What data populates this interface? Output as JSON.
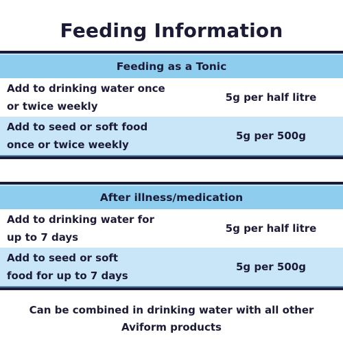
{
  "title": "Feeding Information",
  "sections": [
    {
      "header": "Feeding as a Tonic",
      "rows": [
        {
          "line1": "Add to drinking water once",
          "line2": "or twice weekly",
          "dose": "5g per half litre"
        },
        {
          "line1": "Add to seed or soft food",
          "line2": "once or twice weekly",
          "dose": "5g per 500g"
        }
      ]
    },
    {
      "header": "After illness/medication",
      "rows": [
        {
          "line1": "Add to drinking water for",
          "line2": "up to 7 days",
          "dose": "5g per half litre"
        },
        {
          "line1": "Add to seed or soft",
          "line2": "food for up to 7 days",
          "dose": "5g per 500g"
        }
      ]
    }
  ],
  "footer": {
    "line1": "Can be combined in drinking water with all other",
    "line2": "Aviform products"
  },
  "colors": {
    "navy": "#1c1a3b",
    "header_blue": "#8fcdef",
    "row_light_blue": "#c8e6f7"
  }
}
